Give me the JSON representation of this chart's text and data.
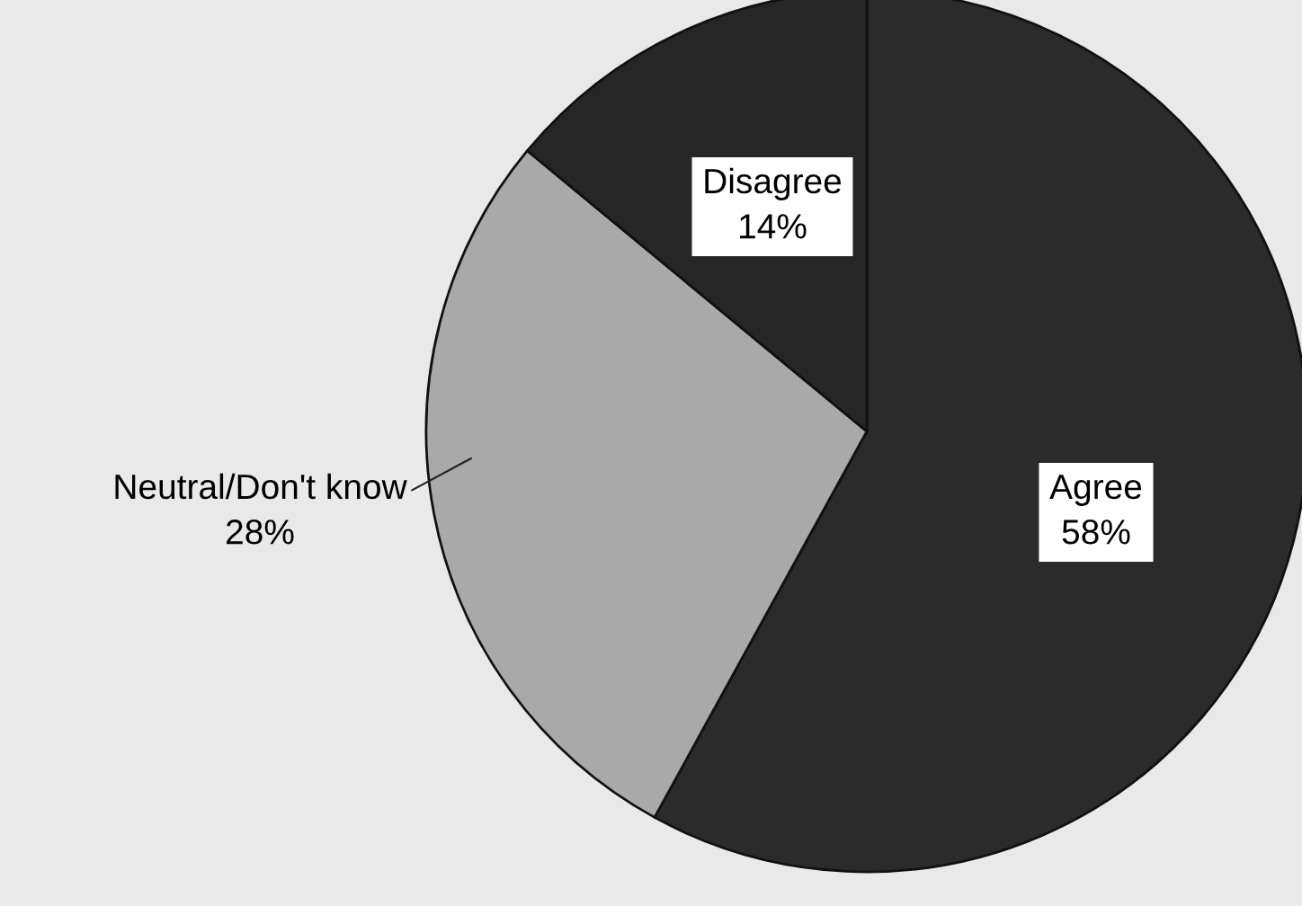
{
  "chart_data": {
    "type": "pie",
    "categories": [
      "Agree",
      "Neutral/Don't know",
      "Disagree"
    ],
    "values": [
      58,
      28,
      14
    ],
    "value_labels": [
      "58%",
      "28%",
      "14%"
    ],
    "colors": [
      "#2b2b2b",
      "#a9a9a9",
      "#262626"
    ]
  }
}
